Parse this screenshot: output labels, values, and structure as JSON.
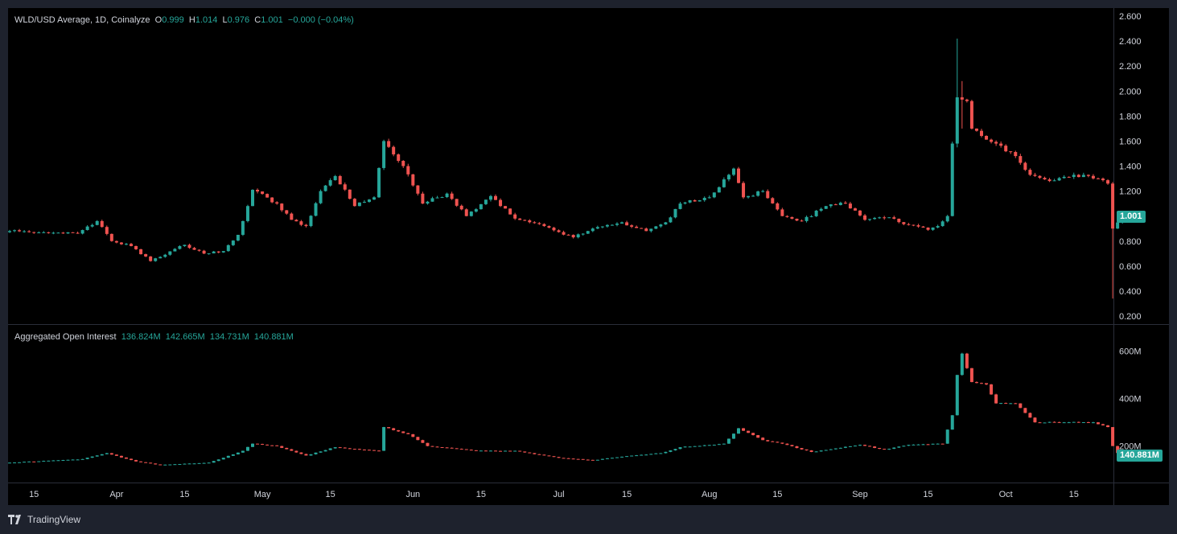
{
  "price_legend": {
    "symbol": "WLD/USD Average, 1D, Coinalyze",
    "o_label": "O",
    "o": "0.999",
    "h_label": "H",
    "h": "1.014",
    "l_label": "L",
    "l": "0.976",
    "c_label": "C",
    "c": "1.001",
    "change": "−0.000 (−0.04%)"
  },
  "oi_legend": {
    "title": "Aggregated Open Interest",
    "o": "136.824M",
    "h": "142.665M",
    "l": "134.731M",
    "c": "140.881M"
  },
  "colors": {
    "up": "#26a69a",
    "down": "#ef5350"
  },
  "footer": {
    "brand": "TradingView"
  },
  "chart_data": [
    {
      "type": "candlestick",
      "yaxis": {
        "ticks": [
          "2.600",
          "2.400",
          "2.200",
          "2.000",
          "1.800",
          "1.600",
          "1.400",
          "1.200",
          "1.000",
          "0.800",
          "0.600",
          "0.400",
          "0.200"
        ],
        "range": [
          0.2,
          2.6
        ],
        "side": "right"
      },
      "last_value_label": "1.001",
      "last_value": 1.001,
      "xaxis": {
        "ticks": [
          "15",
          "Apr",
          "15",
          "May",
          "15",
          "Jun",
          "15",
          "Jul",
          "15",
          "Aug",
          "15",
          "Sep",
          "15",
          "Oct",
          "15"
        ],
        "start": "2024-03-10",
        "end": "2024-10-15"
      },
      "start_date": "2024-03-10",
      "anchors": [
        [
          "2024-03-10",
          0.88
        ],
        [
          "2024-03-17",
          0.87
        ],
        [
          "2024-03-24",
          0.86
        ],
        [
          "2024-03-28",
          0.96
        ],
        [
          "2024-03-31",
          0.8
        ],
        [
          "2024-04-04",
          0.76
        ],
        [
          "2024-04-08",
          0.64
        ],
        [
          "2024-04-15",
          0.77
        ],
        [
          "2024-04-19",
          0.7
        ],
        [
          "2024-04-23",
          0.72
        ],
        [
          "2024-04-26",
          0.85
        ],
        [
          "2024-04-28",
          1.08
        ],
        [
          "2024-04-29",
          1.21
        ],
        [
          "2024-05-04",
          1.1
        ],
        [
          "2024-05-07",
          0.97
        ],
        [
          "2024-05-10",
          0.92
        ],
        [
          "2024-05-13",
          1.2
        ],
        [
          "2024-05-16",
          1.32
        ],
        [
          "2024-05-20",
          1.08
        ],
        [
          "2024-05-24",
          1.15
        ],
        [
          "2024-05-26",
          1.6
        ],
        [
          "2024-05-30",
          1.4
        ],
        [
          "2024-06-03",
          1.1
        ],
        [
          "2024-06-08",
          1.18
        ],
        [
          "2024-06-12",
          1.0
        ],
        [
          "2024-06-17",
          1.16
        ],
        [
          "2024-06-22",
          0.98
        ],
        [
          "2024-06-28",
          0.92
        ],
        [
          "2024-07-04",
          0.83
        ],
        [
          "2024-07-08",
          0.9
        ],
        [
          "2024-07-14",
          0.95
        ],
        [
          "2024-07-19",
          0.88
        ],
        [
          "2024-07-23",
          0.95
        ],
        [
          "2024-07-26",
          1.1
        ],
        [
          "2024-08-01",
          1.15
        ],
        [
          "2024-08-06",
          1.38
        ],
        [
          "2024-08-08",
          1.15
        ],
        [
          "2024-08-12",
          1.2
        ],
        [
          "2024-08-16",
          1.0
        ],
        [
          "2024-08-20",
          0.96
        ],
        [
          "2024-08-25",
          1.08
        ],
        [
          "2024-08-29",
          1.1
        ],
        [
          "2024-09-02",
          0.97
        ],
        [
          "2024-09-07",
          0.99
        ],
        [
          "2024-09-11",
          0.93
        ],
        [
          "2024-09-15",
          0.89
        ],
        [
          "2024-09-17",
          0.92
        ],
        [
          "2024-09-19",
          1.0
        ],
        [
          "2024-09-20",
          1.58
        ],
        [
          "2024-09-21",
          1.95
        ],
        [
          "2024-09-23",
          1.92
        ],
        [
          "2024-09-24",
          1.7
        ],
        [
          "2024-09-29",
          1.58
        ],
        [
          "2024-10-03",
          1.48
        ],
        [
          "2024-10-06",
          1.33
        ],
        [
          "2024-10-10",
          1.28
        ],
        [
          "2024-10-15",
          1.33
        ],
        [
          "2024-10-20",
          1.3
        ],
        [
          "2024-10-22",
          1.26
        ],
        [
          "2024-10-23",
          0.9
        ],
        [
          "2024-10-25",
          1.001
        ]
      ],
      "wick_spikes": [
        [
          "2024-09-21",
          2.42,
          1.55
        ],
        [
          "2024-09-22",
          2.08,
          1.7
        ],
        [
          "2024-10-23",
          1.22,
          0.34
        ]
      ]
    },
    {
      "type": "candlestick",
      "title": "Aggregated Open Interest",
      "yaxis": {
        "ticks": [
          "600M",
          "400M",
          "200M"
        ],
        "range": [
          80,
          650
        ],
        "side": "right"
      },
      "last_value_label": "140.881M",
      "last_value": 140.881,
      "anchors": [
        [
          "2024-03-10",
          130
        ],
        [
          "2024-03-25",
          145
        ],
        [
          "2024-03-30",
          170
        ],
        [
          "2024-04-05",
          135
        ],
        [
          "2024-04-10",
          120
        ],
        [
          "2024-04-20",
          130
        ],
        [
          "2024-04-27",
          180
        ],
        [
          "2024-04-29",
          210
        ],
        [
          "2024-05-04",
          200
        ],
        [
          "2024-05-10",
          160
        ],
        [
          "2024-05-16",
          195
        ],
        [
          "2024-05-21",
          185
        ],
        [
          "2024-05-25",
          180
        ],
        [
          "2024-05-26",
          280
        ],
        [
          "2024-05-31",
          250
        ],
        [
          "2024-06-04",
          200
        ],
        [
          "2024-06-14",
          180
        ],
        [
          "2024-06-22",
          180
        ],
        [
          "2024-07-01",
          150
        ],
        [
          "2024-07-08",
          140
        ],
        [
          "2024-07-14",
          155
        ],
        [
          "2024-07-22",
          170
        ],
        [
          "2024-07-26",
          195
        ],
        [
          "2024-08-04",
          210
        ],
        [
          "2024-08-07",
          275
        ],
        [
          "2024-08-12",
          225
        ],
        [
          "2024-08-16",
          210
        ],
        [
          "2024-08-22",
          175
        ],
        [
          "2024-09-01",
          205
        ],
        [
          "2024-09-06",
          185
        ],
        [
          "2024-09-11",
          205
        ],
        [
          "2024-09-18",
          210
        ],
        [
          "2024-09-20",
          330
        ],
        [
          "2024-09-21",
          500
        ],
        [
          "2024-09-22",
          590
        ],
        [
          "2024-09-24",
          470
        ],
        [
          "2024-09-27",
          460
        ],
        [
          "2024-09-29",
          380
        ],
        [
          "2024-10-03",
          380
        ],
        [
          "2024-10-07",
          300
        ],
        [
          "2024-10-13",
          300
        ],
        [
          "2024-10-19",
          300
        ],
        [
          "2024-10-22",
          280
        ],
        [
          "2024-10-23",
          200
        ],
        [
          "2024-10-25",
          140.881
        ]
      ]
    }
  ]
}
